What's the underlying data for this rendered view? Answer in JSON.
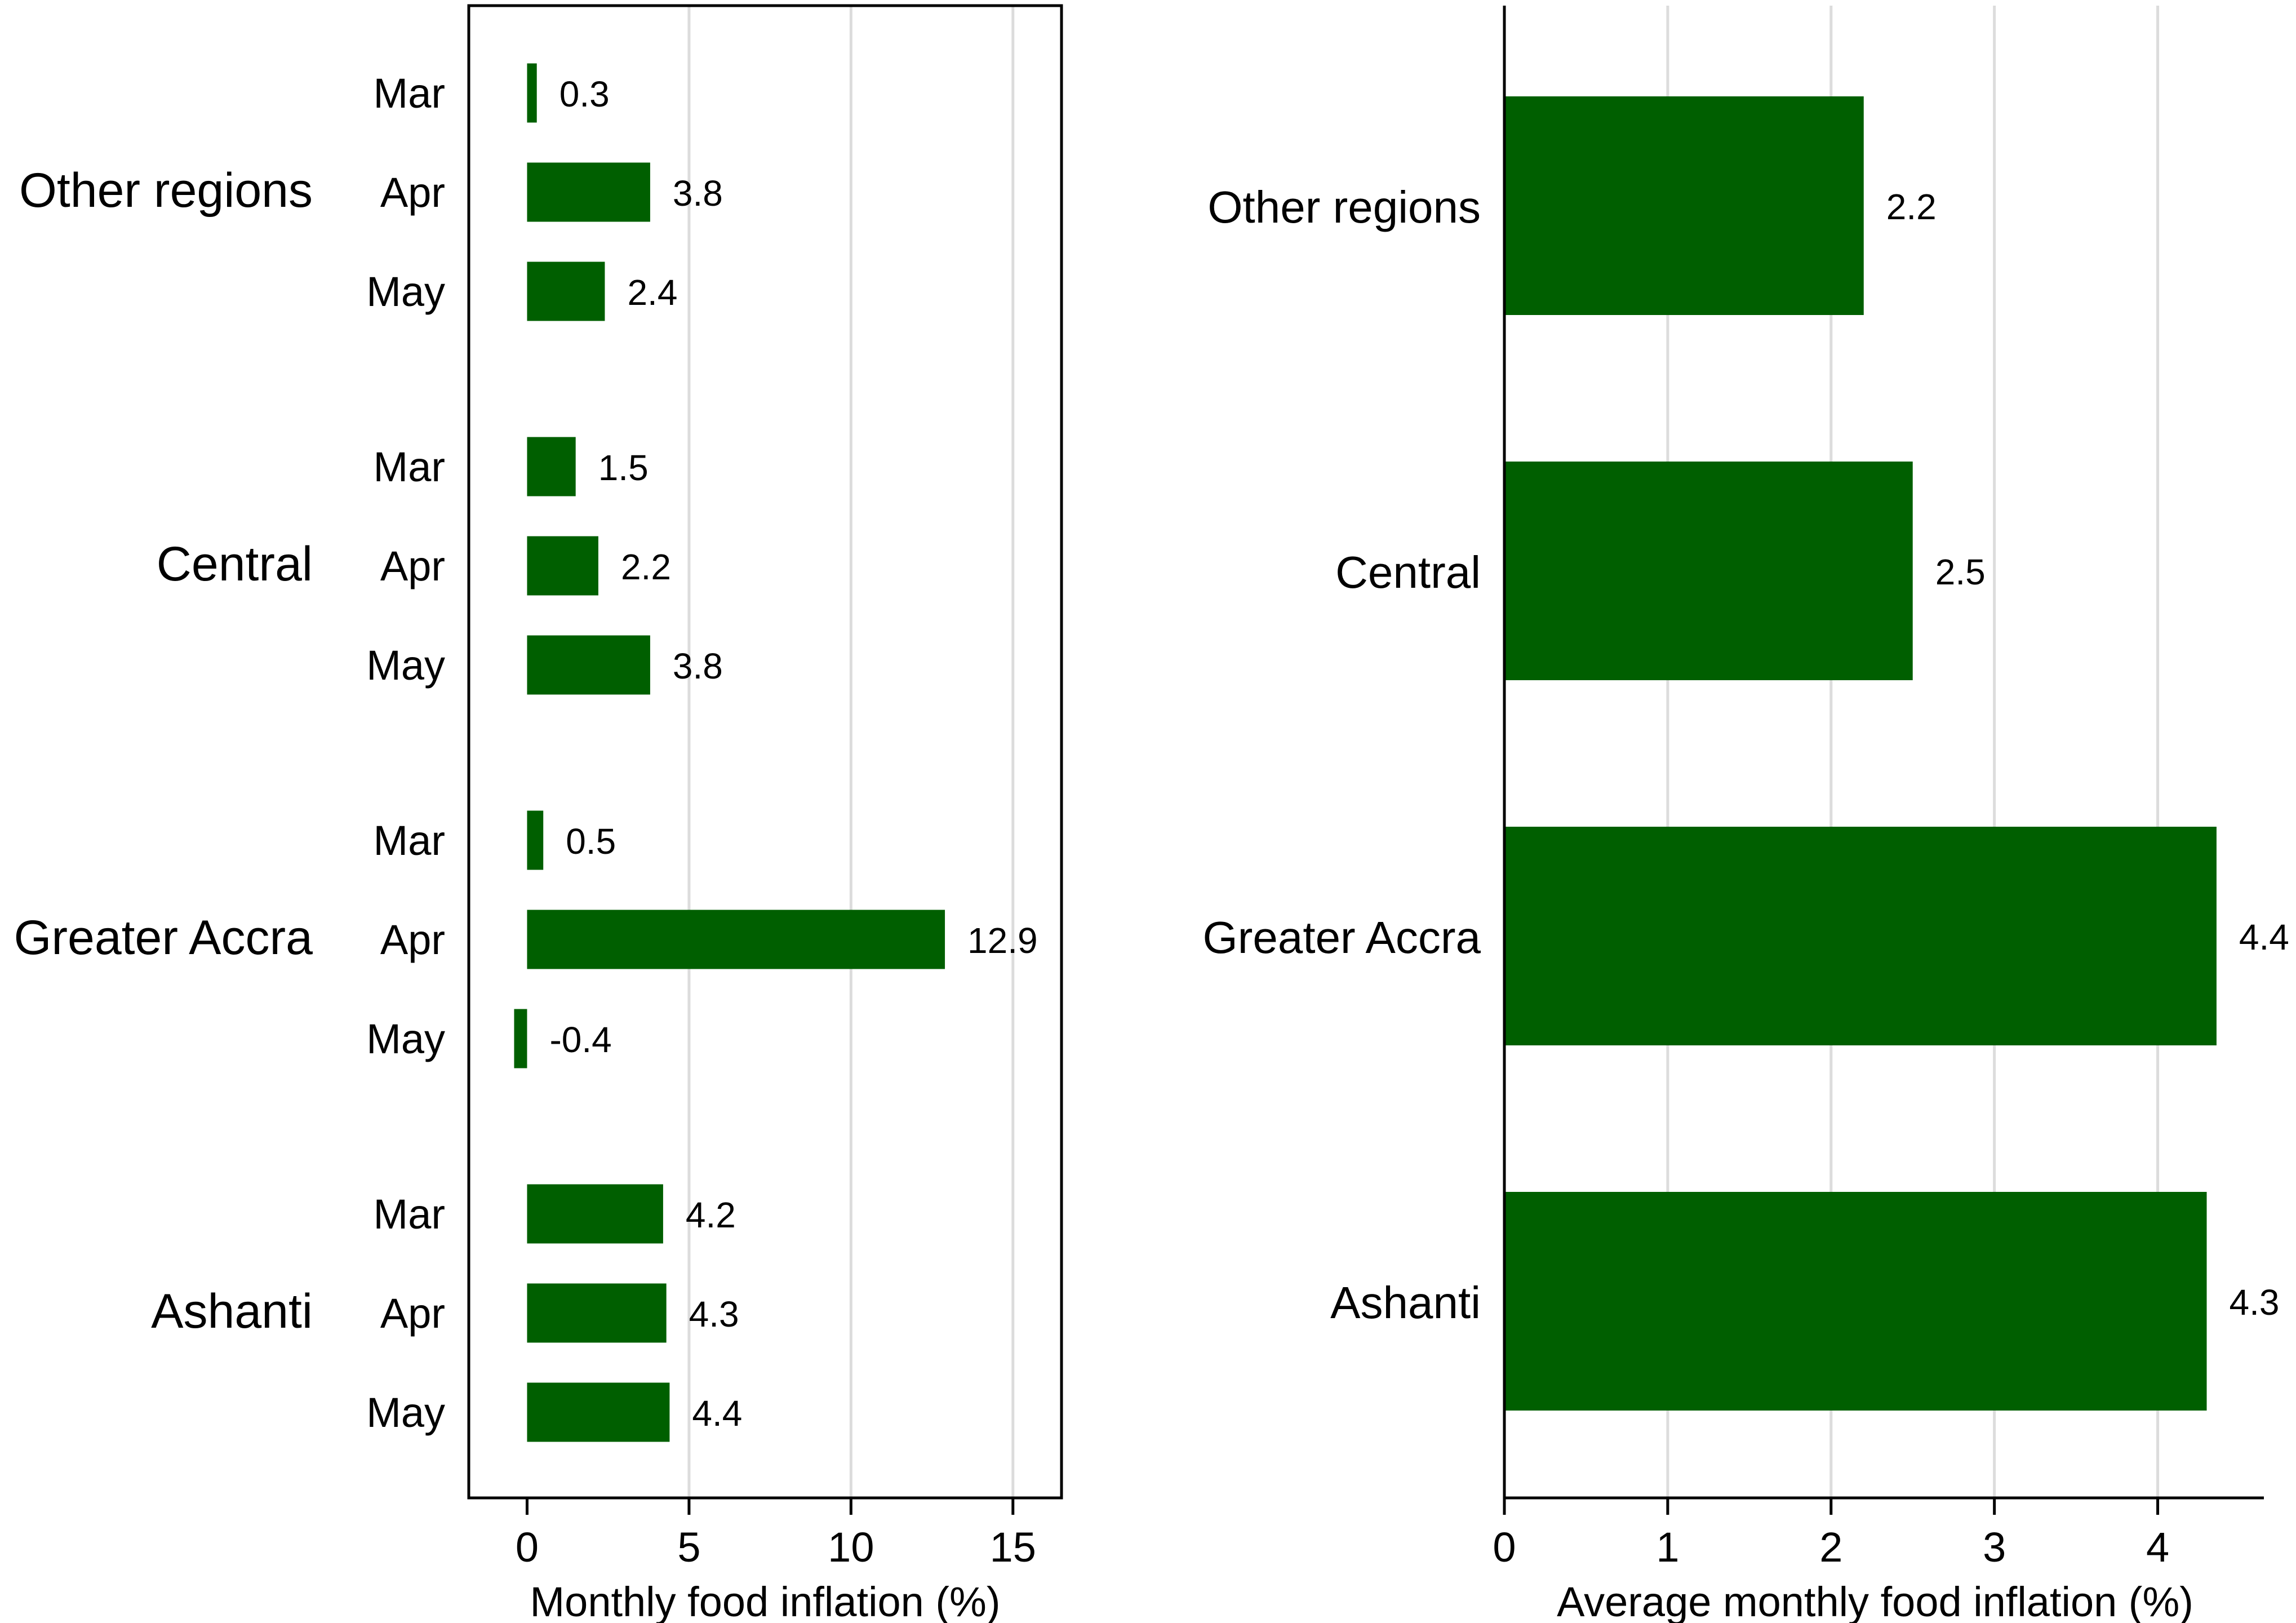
{
  "colors": {
    "bar": "#005f00",
    "grid": "#dcdcdc",
    "frame": "#000000",
    "text": "#000000"
  },
  "chart_data": [
    {
      "type": "bar",
      "orientation": "horizontal",
      "xlabel": "Monthly food inflation (%)",
      "xlim": [
        -1.8,
        16.5
      ],
      "xticks": [
        0,
        5,
        10,
        15
      ],
      "grid": true,
      "groups": [
        {
          "name": "Other regions",
          "months": [
            "Mar",
            "Apr",
            "May"
          ],
          "values": [
            0.3,
            3.8,
            2.4
          ],
          "labels": [
            "0.3",
            "3.8",
            "2.4"
          ]
        },
        {
          "name": "Central",
          "months": [
            "Mar",
            "Apr",
            "May"
          ],
          "values": [
            1.5,
            2.2,
            3.8
          ],
          "labels": [
            "1.5",
            "2.2",
            "3.8"
          ]
        },
        {
          "name": "Greater Accra",
          "months": [
            "Mar",
            "Apr",
            "May"
          ],
          "values": [
            0.5,
            12.9,
            -0.4
          ],
          "labels": [
            "0.5",
            "12.9",
            "-0.4"
          ]
        },
        {
          "name": "Ashanti",
          "months": [
            "Mar",
            "Apr",
            "May"
          ],
          "values": [
            4.2,
            4.3,
            4.4
          ],
          "labels": [
            "4.2",
            "4.3",
            "4.4"
          ]
        }
      ]
    },
    {
      "type": "bar",
      "orientation": "horizontal",
      "xlabel": "Average monthly food inflation (%)",
      "xlim": [
        0,
        4.65
      ],
      "xticks": [
        0,
        1,
        2,
        3,
        4
      ],
      "grid": true,
      "categories": [
        "Other regions",
        "Central",
        "Greater Accra",
        "Ashanti"
      ],
      "values": [
        2.2,
        2.5,
        4.36,
        4.3
      ],
      "labels": [
        "2.2",
        "2.5",
        "4.4",
        "4.3"
      ]
    }
  ]
}
